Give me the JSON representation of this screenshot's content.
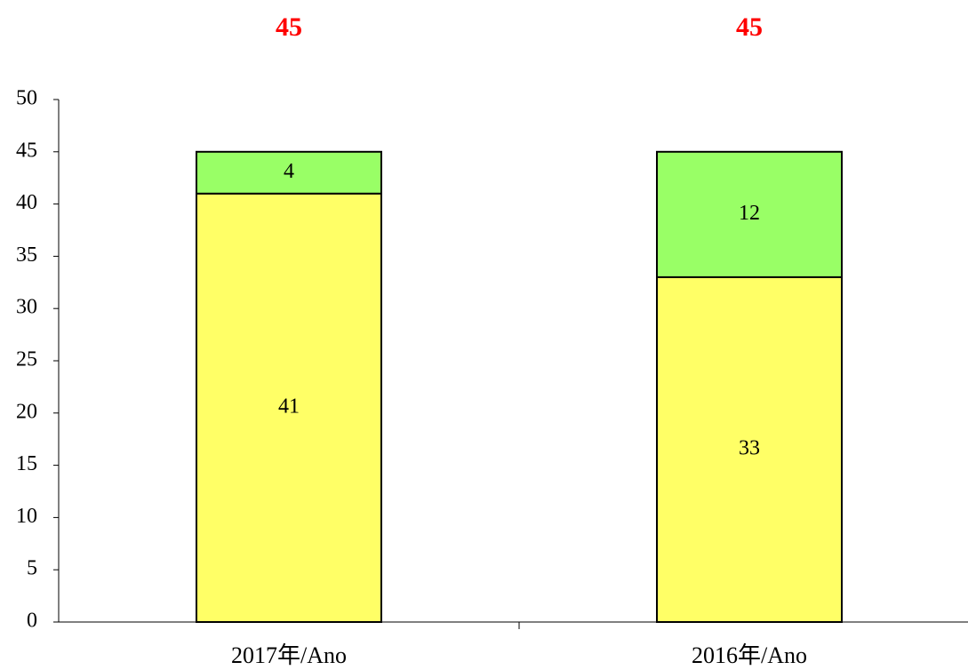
{
  "chart_data": {
    "type": "stacked_bar",
    "categories": [
      "2017年/Ano",
      "2016年/Ano"
    ],
    "series": [
      {
        "color": "#ffff66",
        "values": [
          41,
          33
        ]
      },
      {
        "color": "#99ff66",
        "values": [
          4,
          12
        ]
      }
    ],
    "totals": [
      45,
      45
    ],
    "ylim": [
      0,
      50
    ],
    "yticks": [
      0,
      5,
      10,
      15,
      20,
      25,
      30,
      35,
      40,
      45,
      50
    ],
    "grid": false
  }
}
